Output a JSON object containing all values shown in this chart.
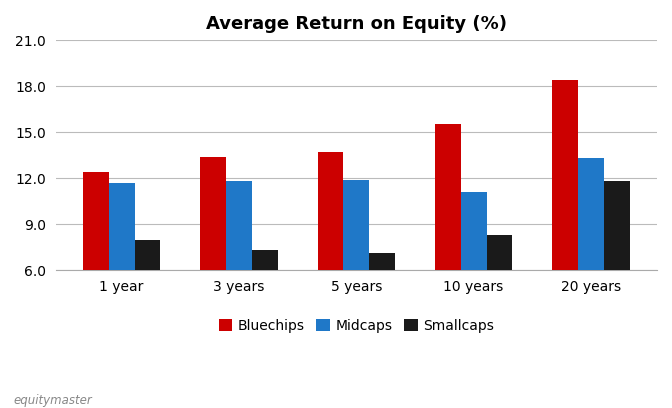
{
  "title": "Average Return on Equity (%)",
  "categories": [
    "1 year",
    "3 years",
    "5 years",
    "10 years",
    "20 years"
  ],
  "series": {
    "Bluechips": [
      12.4,
      13.4,
      13.7,
      15.5,
      18.4
    ],
    "Midcaps": [
      11.7,
      11.8,
      11.9,
      11.1,
      13.3
    ],
    "Smallcaps": [
      8.0,
      7.3,
      7.1,
      8.3,
      11.8
    ]
  },
  "colors": {
    "Bluechips": "#cc0000",
    "Midcaps": "#1f78c8",
    "Smallcaps": "#1a1a1a"
  },
  "ylim": [
    6.0,
    21.0
  ],
  "yticks": [
    6.0,
    9.0,
    12.0,
    15.0,
    18.0,
    21.0
  ],
  "bar_width": 0.22,
  "background_color": "#ffffff",
  "grid_color": "#bbbbbb",
  "watermark": "equitymaster",
  "title_fontsize": 13,
  "legend_fontsize": 10,
  "tick_fontsize": 10
}
